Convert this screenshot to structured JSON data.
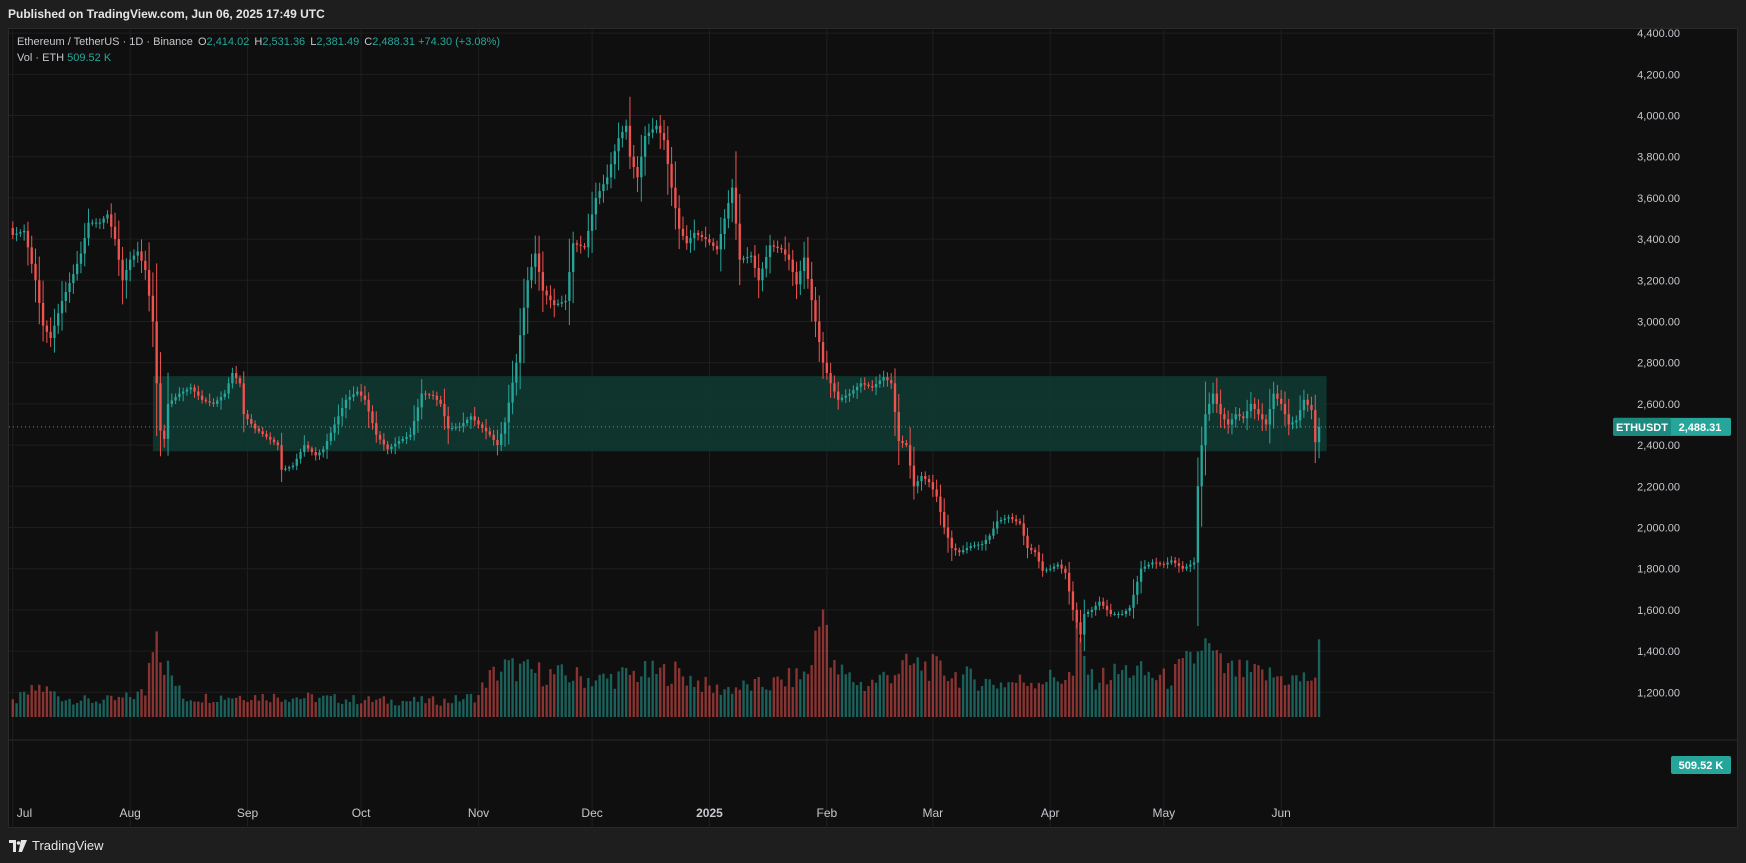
{
  "header": {
    "published": "Published on TradingView.com, Jun 06, 2025 17:49 UTC"
  },
  "legend": {
    "symbol": "Ethereum / TetherUS · 1D · Binance",
    "o_label": "O",
    "o_value": "2,414.02",
    "h_label": "H",
    "h_value": "2,531.36",
    "l_label": "L",
    "l_value": "2,381.49",
    "c_label": "C",
    "c_value": "2,488.31",
    "change": "+74.30 (+3.08%)",
    "vol_label": "Vol · ETH",
    "vol_value": "509.52 K"
  },
  "footer": {
    "brand": "TradingView"
  },
  "colors": {
    "up": "#26a69a",
    "down": "#ef5350",
    "zone": "#0f3b33",
    "background": "#0f0f0f",
    "grid": "#1f1f1f",
    "axis_text": "#c6c8ce"
  },
  "icons": {
    "logo": "tradingview-logo-icon"
  },
  "chart_data": {
    "type": "candlestick",
    "yaxis": {
      "ticks": [
        1200,
        1400,
        1600,
        1800,
        2000,
        2200,
        2400,
        2600,
        2800,
        3000,
        3200,
        3400,
        3600,
        3800,
        4000,
        4200,
        4400
      ],
      "tick_labels": [
        "1,200.00",
        "1,400.00",
        "1,600.00",
        "1,800.00",
        "2,000.00",
        "2,200.00",
        "2,400.00",
        "2,600.00",
        "2,800.00",
        "3,000.00",
        "3,200.00",
        "3,400.00",
        "3,600.00",
        "3,800.00",
        "4,000.00",
        "4,200.00",
        "4,400.00"
      ],
      "range": [
        1080,
        4420
      ]
    },
    "xaxis": {
      "labels": [
        "Jul",
        "Aug",
        "Sep",
        "Oct",
        "Nov",
        "Dec",
        "2025",
        "Feb",
        "Mar",
        "Apr",
        "May",
        "Jun"
      ],
      "label_day_index": [
        0,
        31,
        62,
        92,
        123,
        153,
        184,
        215,
        243,
        274,
        304,
        335
      ],
      "range_days": [
        -1,
        378
      ]
    },
    "last_price": {
      "tag": "ETHUSDT",
      "value": "2,488.31",
      "price": 2488.31
    },
    "last_volume": {
      "value": "509.52 K"
    },
    "zone": {
      "top": 2735,
      "bottom": 2370,
      "start_day": 37,
      "end_day": 347
    },
    "price_path": [
      [
        0,
        3420
      ],
      [
        3,
        3440
      ],
      [
        6,
        3200
      ],
      [
        8,
        2980
      ],
      [
        10,
        2920
      ],
      [
        13,
        3100
      ],
      [
        16,
        3230
      ],
      [
        18,
        3330
      ],
      [
        20,
        3480
      ],
      [
        23,
        3480
      ],
      [
        25,
        3520
      ],
      [
        27,
        3400
      ],
      [
        29,
        3200
      ],
      [
        31,
        3300
      ],
      [
        33,
        3340
      ],
      [
        35,
        3250
      ],
      [
        37,
        3000
      ],
      [
        38,
        2700
      ],
      [
        39,
        2470
      ],
      [
        40,
        2430
      ],
      [
        41,
        2600
      ],
      [
        44,
        2650
      ],
      [
        47,
        2680
      ],
      [
        50,
        2620
      ],
      [
        53,
        2600
      ],
      [
        56,
        2650
      ],
      [
        58,
        2750
      ],
      [
        60,
        2700
      ],
      [
        61,
        2550
      ],
      [
        64,
        2480
      ],
      [
        67,
        2440
      ],
      [
        70,
        2400
      ],
      [
        71,
        2280
      ],
      [
        74,
        2300
      ],
      [
        77,
        2400
      ],
      [
        80,
        2350
      ],
      [
        82,
        2380
      ],
      [
        85,
        2500
      ],
      [
        88,
        2620
      ],
      [
        91,
        2660
      ],
      [
        93,
        2620
      ],
      [
        96,
        2450
      ],
      [
        99,
        2380
      ],
      [
        102,
        2420
      ],
      [
        105,
        2450
      ],
      [
        108,
        2650
      ],
      [
        111,
        2640
      ],
      [
        113,
        2600
      ],
      [
        115,
        2480
      ],
      [
        118,
        2490
      ],
      [
        121,
        2540
      ],
      [
        123,
        2500
      ],
      [
        126,
        2450
      ],
      [
        128,
        2400
      ],
      [
        130,
        2510
      ],
      [
        133,
        2800
      ],
      [
        136,
        3200
      ],
      [
        138,
        3330
      ],
      [
        140,
        3150
      ],
      [
        143,
        3080
      ],
      [
        146,
        3100
      ],
      [
        148,
        3380
      ],
      [
        151,
        3360
      ],
      [
        154,
        3600
      ],
      [
        157,
        3700
      ],
      [
        160,
        3890
      ],
      [
        162,
        3950
      ],
      [
        163,
        3800
      ],
      [
        165,
        3700
      ],
      [
        167,
        3900
      ],
      [
        170,
        3950
      ],
      [
        172,
        3880
      ],
      [
        174,
        3650
      ],
      [
        176,
        3450
      ],
      [
        178,
        3380
      ],
      [
        180,
        3430
      ],
      [
        183,
        3400
      ],
      [
        186,
        3350
      ],
      [
        188,
        3500
      ],
      [
        190,
        3650
      ],
      [
        192,
        3300
      ],
      [
        195,
        3320
      ],
      [
        197,
        3200
      ],
      [
        200,
        3370
      ],
      [
        203,
        3350
      ],
      [
        205,
        3300
      ],
      [
        207,
        3180
      ],
      [
        209,
        3310
      ],
      [
        212,
        3000
      ],
      [
        214,
        2800
      ],
      [
        216,
        2700
      ],
      [
        218,
        2620
      ],
      [
        221,
        2650
      ],
      [
        224,
        2700
      ],
      [
        227,
        2680
      ],
      [
        230,
        2730
      ],
      [
        232,
        2700
      ],
      [
        234,
        2420
      ],
      [
        236,
        2400
      ],
      [
        238,
        2200
      ],
      [
        240,
        2250
      ],
      [
        242,
        2220
      ],
      [
        244,
        2150
      ],
      [
        246,
        2000
      ],
      [
        248,
        1900
      ],
      [
        250,
        1880
      ],
      [
        253,
        1910
      ],
      [
        256,
        1920
      ],
      [
        258,
        1960
      ],
      [
        260,
        2030
      ],
      [
        263,
        2050
      ],
      [
        266,
        2020
      ],
      [
        268,
        1900
      ],
      [
        270,
        1880
      ],
      [
        272,
        1790
      ],
      [
        274,
        1800
      ],
      [
        276,
        1820
      ],
      [
        278,
        1780
      ],
      [
        280,
        1600
      ],
      [
        282,
        1480
      ],
      [
        283,
        1580
      ],
      [
        285,
        1600
      ],
      [
        287,
        1640
      ],
      [
        290,
        1580
      ],
      [
        293,
        1580
      ],
      [
        295,
        1610
      ],
      [
        298,
        1800
      ],
      [
        301,
        1830
      ],
      [
        304,
        1820
      ],
      [
        306,
        1840
      ],
      [
        309,
        1800
      ],
      [
        312,
        1830
      ],
      [
        313,
        2200
      ],
      [
        314,
        2400
      ],
      [
        315,
        2550
      ],
      [
        317,
        2650
      ],
      [
        319,
        2550
      ],
      [
        321,
        2500
      ],
      [
        323,
        2550
      ],
      [
        325,
        2530
      ],
      [
        327,
        2600
      ],
      [
        329,
        2550
      ],
      [
        331,
        2500
      ],
      [
        333,
        2650
      ],
      [
        335,
        2600
      ],
      [
        337,
        2500
      ],
      [
        339,
        2520
      ],
      [
        341,
        2620
      ],
      [
        343,
        2570
      ],
      [
        344,
        2414
      ],
      [
        345,
        2488
      ]
    ],
    "volume_path": [
      [
        0,
        120
      ],
      [
        7,
        240
      ],
      [
        14,
        150
      ],
      [
        21,
        130
      ],
      [
        28,
        140
      ],
      [
        35,
        200
      ],
      [
        38,
        900
      ],
      [
        39,
        500
      ],
      [
        45,
        150
      ],
      [
        60,
        170
      ],
      [
        75,
        160
      ],
      [
        90,
        140
      ],
      [
        100,
        130
      ],
      [
        115,
        130
      ],
      [
        123,
        170
      ],
      [
        125,
        300
      ],
      [
        130,
        400
      ],
      [
        140,
        350
      ],
      [
        150,
        320
      ],
      [
        155,
        300
      ],
      [
        165,
        350
      ],
      [
        175,
        360
      ],
      [
        180,
        300
      ],
      [
        185,
        220
      ],
      [
        200,
        260
      ],
      [
        210,
        350
      ],
      [
        215,
        1000
      ],
      [
        216,
        400
      ],
      [
        225,
        250
      ],
      [
        235,
        400
      ],
      [
        240,
        420
      ],
      [
        250,
        330
      ],
      [
        260,
        270
      ],
      [
        270,
        300
      ],
      [
        280,
        330
      ],
      [
        281,
        650
      ],
      [
        285,
        300
      ],
      [
        295,
        380
      ],
      [
        305,
        300
      ],
      [
        313,
        500
      ],
      [
        314,
        600
      ],
      [
        320,
        380
      ],
      [
        330,
        340
      ],
      [
        340,
        300
      ],
      [
        344,
        330
      ],
      [
        345,
        509.52
      ]
    ],
    "volume_max": 1050
  }
}
